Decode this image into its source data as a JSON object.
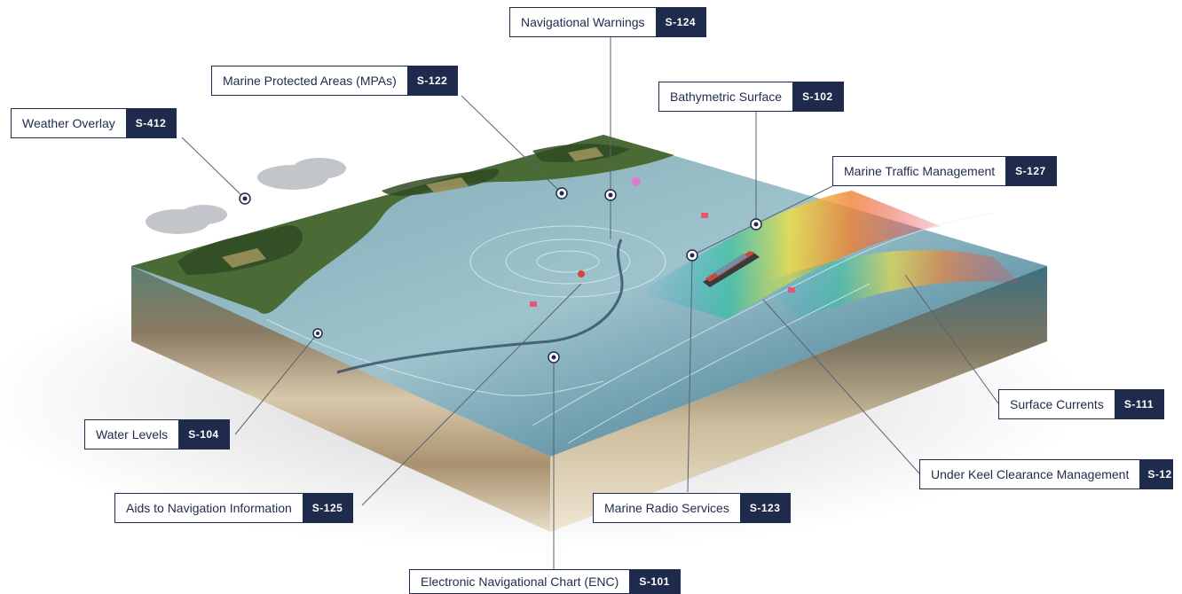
{
  "callouts": [
    {
      "id": "navigational-warnings",
      "name": "Navigational Warnings",
      "code": "S-124"
    },
    {
      "id": "marine-protected-areas",
      "name": "Marine Protected Areas (MPAs)",
      "code": "S-122"
    },
    {
      "id": "bathymetric-surface",
      "name": "Bathymetric Surface",
      "code": "S-102"
    },
    {
      "id": "weather-overlay",
      "name": "Weather Overlay",
      "code": "S-412"
    },
    {
      "id": "marine-traffic-management",
      "name": "Marine Traffic Management",
      "code": "S-127"
    },
    {
      "id": "surface-currents",
      "name": "Surface Currents",
      "code": "S-111"
    },
    {
      "id": "water-levels",
      "name": "Water Levels",
      "code": "S-104"
    },
    {
      "id": "under-keel-clearance",
      "name": "Under Keel Clearance Management",
      "code": "S-12"
    },
    {
      "id": "aids-to-navigation",
      "name": "Aids to Navigation Information",
      "code": "S-125"
    },
    {
      "id": "marine-radio-services",
      "name": "Marine Radio Services",
      "code": "S-123"
    },
    {
      "id": "electronic-navigational-chart",
      "name": "Electronic Navigational Chart (ENC)",
      "code": "S-101"
    }
  ],
  "colors": {
    "label_dark": "#1f2b4c",
    "label_light": "#ffffff",
    "leader_line": "#5a6270",
    "water_deep": "#2f6f8f",
    "water_shallow": "#a9d3dc",
    "land_forest": "#3d5a2a",
    "sediment": "#c9b89a"
  },
  "icons": [
    "marker-dot-icon",
    "ship-icon",
    "cloud-icon",
    "buoy-icon"
  ]
}
